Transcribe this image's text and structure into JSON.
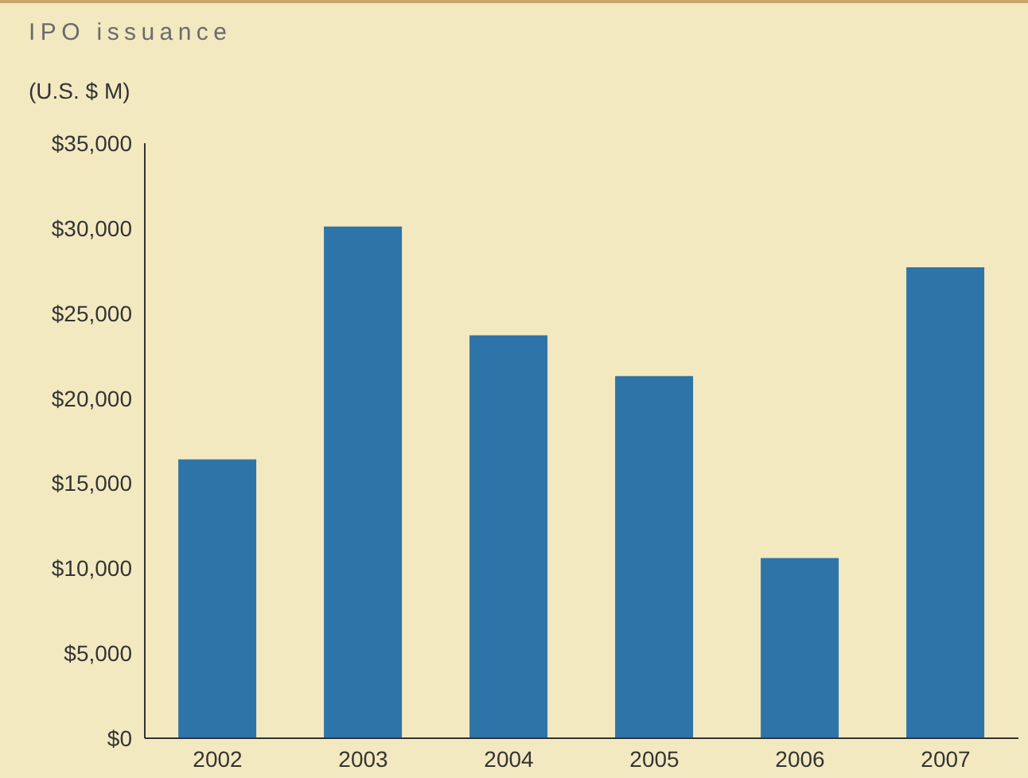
{
  "chart_data": {
    "type": "bar",
    "title": "IPO issuance",
    "ylabel": "(U.S. $ M)",
    "categories": [
      "2002",
      "2003",
      "2004",
      "2005",
      "2006",
      "2007"
    ],
    "values": [
      16400,
      30100,
      23700,
      21300,
      10600,
      27700
    ],
    "color": "#2f74a8",
    "ylim": [
      0,
      35000
    ],
    "yticks": [
      {
        "value": 0,
        "label": "$0"
      },
      {
        "value": 5000,
        "label": "$5,000"
      },
      {
        "value": 10000,
        "label": "$10,000"
      },
      {
        "value": 15000,
        "label": "$15,000"
      },
      {
        "value": 20000,
        "label": "$20,000"
      },
      {
        "value": 25000,
        "label": "$25,000"
      },
      {
        "value": 30000,
        "label": "$30,000"
      },
      {
        "value": 35000,
        "label": "$35,000"
      }
    ],
    "grid": false,
    "legend": false
  }
}
